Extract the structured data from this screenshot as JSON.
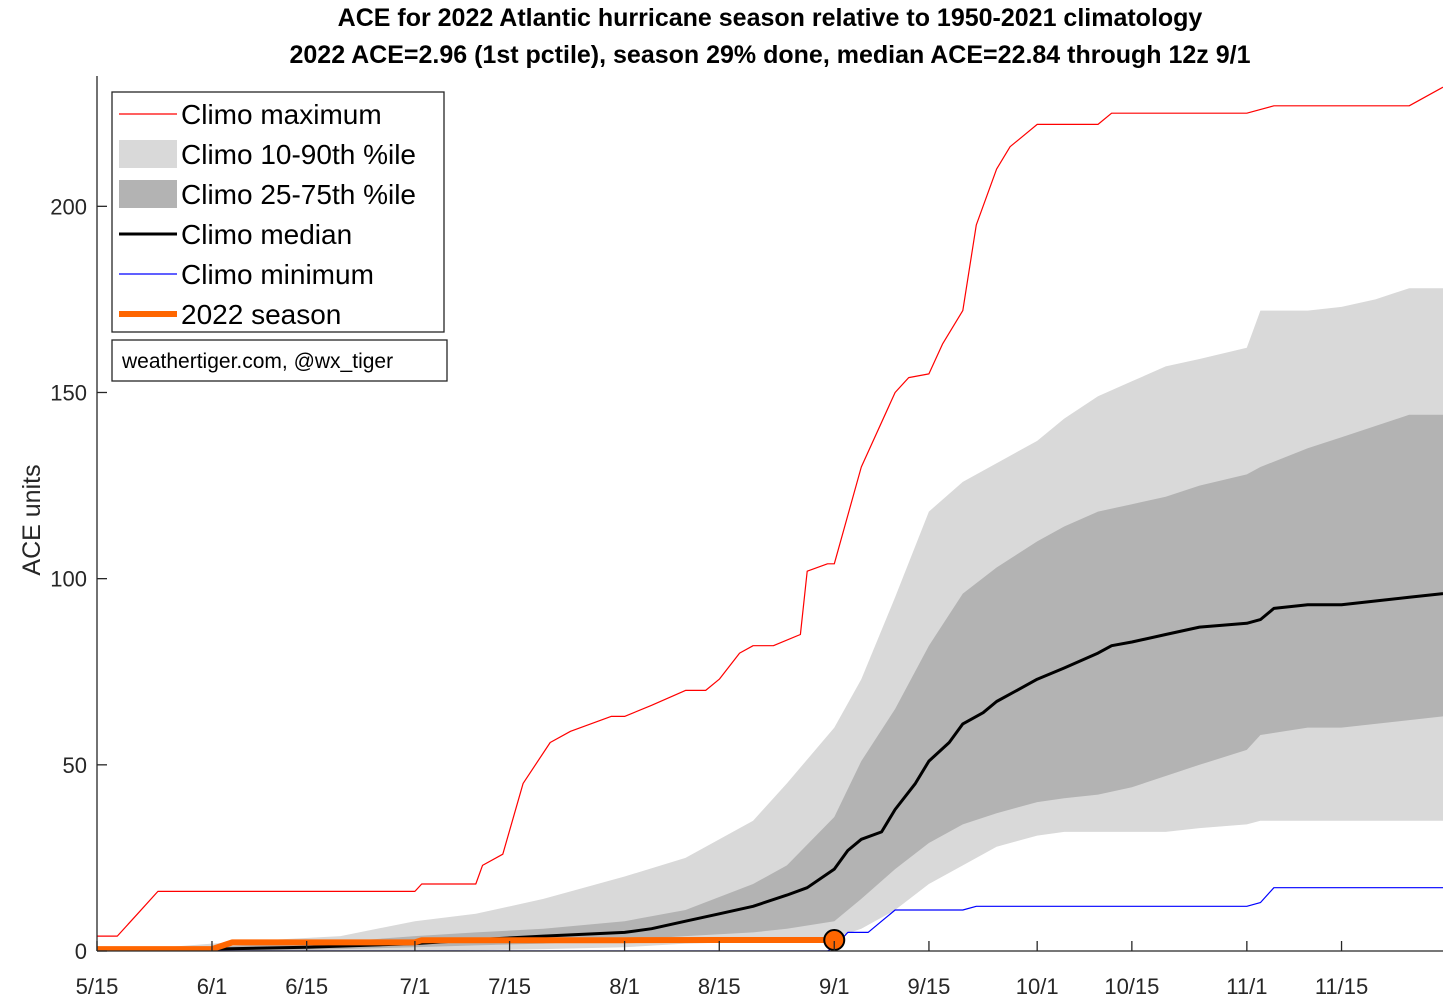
{
  "chart_data": {
    "type": "area",
    "title": "ACE for 2022 Atlantic hurricane season relative to 1950-2021 climatology",
    "subtitle": "2022 ACE=2.96 (1st pctile), season 29% done, median ACE=22.84 through 12z 9/1",
    "xlabel": "",
    "ylabel": "ACE units",
    "xlim": [
      "5/15",
      "11/30"
    ],
    "ylim": [
      0,
      235
    ],
    "x_ticks": [
      "5/15",
      "6/1",
      "6/15",
      "7/1",
      "7/15",
      "8/1",
      "8/15",
      "9/1",
      "9/15",
      "10/1",
      "10/15",
      "11/1",
      "11/15"
    ],
    "y_ticks": [
      0,
      50,
      100,
      150,
      200
    ],
    "grid": false,
    "legend_position": "top-left",
    "credit": "weathertiger.com, @wx_tiger",
    "legend": [
      {
        "label": "Climo maximum",
        "kind": "line",
        "color": "#ff0000",
        "width": 1.2
      },
      {
        "label": "Climo 10-90th %ile",
        "kind": "patch",
        "color": "#d9d9d9"
      },
      {
        "label": "Climo 25-75th %ile",
        "kind": "patch",
        "color": "#b3b3b3"
      },
      {
        "label": "Climo median",
        "kind": "line",
        "color": "#000000",
        "width": 3
      },
      {
        "label": "Climo minimum",
        "kind": "line",
        "color": "#0000ff",
        "width": 1.2
      },
      {
        "label": "2022 season",
        "kind": "line",
        "color": "#ff6600",
        "width": 6
      }
    ],
    "bands": [
      {
        "name": "Climo 10-90th %ile",
        "color": "#d9d9d9",
        "x": [
          "5/15",
          "5/25",
          "6/1",
          "6/10",
          "6/20",
          "7/1",
          "7/10",
          "7/20",
          "8/1",
          "8/10",
          "8/20",
          "8/25",
          "9/1",
          "9/5",
          "9/10",
          "9/15",
          "9/20",
          "9/25",
          "10/1",
          "10/5",
          "10/10",
          "10/15",
          "10/20",
          "10/25",
          "11/1",
          "11/3",
          "11/10",
          "11/15",
          "11/20",
          "11/25",
          "11/30"
        ],
        "lower": [
          0,
          0,
          0,
          0,
          0,
          0,
          0.2,
          0.5,
          1,
          2,
          2.5,
          3,
          3.5,
          6,
          11,
          18,
          23,
          28,
          31,
          32,
          32,
          32,
          32,
          33,
          34,
          35,
          35,
          35,
          35,
          35,
          35
        ],
        "upper": [
          0,
          1,
          2,
          3,
          4,
          8,
          10,
          14,
          20,
          25,
          35,
          45,
          60,
          73,
          95,
          118,
          126,
          131,
          137,
          143,
          149,
          153,
          157,
          159,
          162,
          172,
          172,
          173,
          175,
          178,
          178
        ]
      },
      {
        "name": "Climo 25-75th %ile",
        "color": "#b3b3b3",
        "x": [
          "5/15",
          "5/25",
          "6/1",
          "6/10",
          "6/20",
          "7/1",
          "7/10",
          "7/20",
          "8/1",
          "8/10",
          "8/20",
          "8/25",
          "9/1",
          "9/5",
          "9/10",
          "9/15",
          "9/20",
          "9/25",
          "10/1",
          "10/5",
          "10/10",
          "10/15",
          "10/20",
          "10/25",
          "11/1",
          "11/3",
          "11/10",
          "11/15",
          "11/20",
          "11/25",
          "11/30"
        ],
        "lower": [
          0,
          0,
          0,
          0.2,
          0.5,
          1,
          1.5,
          2,
          3,
          4,
          5,
          6,
          8,
          14,
          22,
          29,
          34,
          37,
          40,
          41,
          42,
          44,
          47,
          50,
          54,
          58,
          60,
          60,
          61,
          62,
          63
        ],
        "upper": [
          0,
          0.5,
          1,
          2,
          2.5,
          4,
          5,
          6,
          8,
          11,
          18,
          23,
          36,
          51,
          65,
          82,
          96,
          103,
          110,
          114,
          118,
          120,
          122,
          125,
          128,
          130,
          135,
          138,
          141,
          144,
          144
        ]
      }
    ],
    "series": [
      {
        "name": "Climo maximum",
        "color": "#ff0000",
        "x": [
          "5/15",
          "5/18",
          "5/21",
          "5/24",
          "6/1",
          "6/10",
          "6/20",
          "7/1",
          "7/2",
          "7/10",
          "7/11",
          "7/14",
          "7/17",
          "7/21",
          "7/24",
          "7/30",
          "8/1",
          "8/5",
          "8/10",
          "8/13",
          "8/15",
          "8/18",
          "8/20",
          "8/23",
          "8/27",
          "8/28",
          "8/31",
          "9/1",
          "9/5",
          "9/10",
          "9/12",
          "9/15",
          "9/17",
          "9/20",
          "9/22",
          "9/25",
          "9/27",
          "10/1",
          "10/5",
          "10/10",
          "10/12",
          "10/20",
          "10/25",
          "11/1",
          "11/5",
          "11/10",
          "11/20",
          "11/25",
          "11/30"
        ],
        "y": [
          4,
          4,
          10,
          16,
          16,
          16,
          16,
          16,
          18,
          18,
          23,
          26,
          45,
          56,
          59,
          63,
          63,
          66,
          70,
          70,
          73,
          80,
          82,
          82,
          85,
          102,
          104,
          104,
          130,
          150,
          154,
          155,
          163,
          172,
          195,
          210,
          216,
          222,
          222,
          222,
          225,
          225,
          225,
          225,
          227,
          227,
          227,
          227,
          232
        ]
      },
      {
        "name": "Climo median",
        "color": "#000000",
        "x": [
          "5/15",
          "5/25",
          "6/1",
          "6/15",
          "7/1",
          "7/10",
          "7/20",
          "8/1",
          "8/5",
          "8/10",
          "8/15",
          "8/20",
          "8/25",
          "8/28",
          "9/1",
          "9/3",
          "9/5",
          "9/8",
          "9/10",
          "9/13",
          "9/15",
          "9/18",
          "9/20",
          "9/23",
          "9/25",
          "9/28",
          "10/1",
          "10/5",
          "10/10",
          "10/12",
          "10/15",
          "10/20",
          "10/25",
          "11/1",
          "11/3",
          "11/5",
          "11/10",
          "11/15",
          "11/20",
          "11/25",
          "11/30"
        ],
        "y": [
          0,
          0.2,
          0.5,
          1,
          2,
          3,
          4,
          5,
          6,
          8,
          10,
          12,
          15,
          17,
          22,
          27,
          30,
          32,
          38,
          45,
          51,
          56,
          61,
          64,
          67,
          70,
          73,
          76,
          80,
          82,
          83,
          85,
          87,
          88,
          89,
          92,
          93,
          93,
          94,
          95,
          96
        ]
      },
      {
        "name": "Climo minimum",
        "color": "#0000ff",
        "x": [
          "5/15",
          "8/31",
          "9/1",
          "9/3",
          "9/6",
          "9/8",
          "9/10",
          "9/15",
          "9/20",
          "9/22",
          "10/1",
          "10/15",
          "11/1",
          "11/3",
          "11/5",
          "11/10",
          "11/20",
          "11/30"
        ],
        "y": [
          0,
          0,
          1,
          5,
          5,
          8,
          11,
          11,
          11,
          12,
          12,
          12,
          12,
          13,
          17,
          17,
          17,
          17
        ]
      },
      {
        "name": "2022 season",
        "color": "#ff6600",
        "x": [
          "5/15",
          "6/1",
          "6/4",
          "6/15",
          "7/1",
          "7/2",
          "7/15",
          "8/1",
          "8/15",
          "9/1"
        ],
        "y": [
          0.5,
          0.5,
          2.3,
          2.3,
          2.3,
          2.9,
          2.9,
          2.9,
          2.96,
          2.96
        ]
      }
    ],
    "current_point": {
      "x": "9/1",
      "y": 2.96,
      "color": "#ff6600"
    }
  }
}
